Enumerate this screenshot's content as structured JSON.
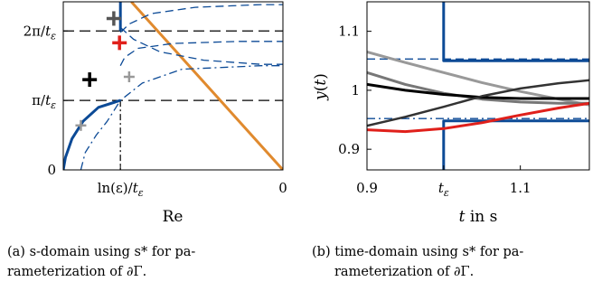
{
  "chart_data": [
    {
      "type": "line",
      "xlabel": "Re",
      "ylabel": "",
      "x_ticks": [
        {
          "value": -3.7,
          "label": "ln(ε)/t_ε"
        },
        {
          "value": 0,
          "label": "0"
        }
      ],
      "y_ticks": [
        {
          "value": 0,
          "label": "0"
        },
        {
          "value": 1,
          "label": "π/t_ε"
        },
        {
          "value": 2,
          "label": "2π/t_ε"
        }
      ],
      "xlim": [
        -5.0,
        0.0
      ],
      "ylim": [
        0,
        2.42
      ],
      "grid_lines_y": [
        1,
        2
      ],
      "vertical_dashdot_x": -3.7,
      "series": [
        {
          "style": "solid",
          "color": "#0c4a96",
          "points": [
            [
              -5.0,
              0.0
            ],
            [
              -4.95,
              0.18
            ],
            [
              -4.8,
              0.45
            ],
            [
              -4.55,
              0.7
            ],
            [
              -4.2,
              0.9
            ],
            [
              -3.7,
              1.0
            ]
          ]
        },
        {
          "style": "solid",
          "color": "#0c4a96",
          "points": [
            [
              -3.7,
              2.42
            ],
            [
              -3.7,
              2.0
            ]
          ]
        },
        {
          "style": "solid",
          "color": "#e08a2e",
          "points": [
            [
              -3.45,
              2.42
            ],
            [
              0.0,
              0.0
            ]
          ]
        },
        {
          "style": "dashdot",
          "color": "#0c4a96",
          "points": [
            [
              -4.6,
              0.0
            ],
            [
              -4.5,
              0.25
            ],
            [
              -4.25,
              0.5
            ],
            [
              -4.0,
              0.7
            ],
            [
              -3.7,
              1.0
            ],
            [
              -3.2,
              1.25
            ],
            [
              -2.3,
              1.45
            ],
            [
              -0.5,
              1.5
            ],
            [
              0.0,
              1.5
            ]
          ]
        },
        {
          "style": "dashed",
          "color": "#0c4a96",
          "points": [
            [
              -3.7,
              2.05
            ],
            [
              -3.4,
              1.88
            ],
            [
              -2.8,
              1.7
            ],
            [
              -1.8,
              1.58
            ],
            [
              -0.5,
              1.52
            ],
            [
              0.0,
              1.52
            ]
          ]
        },
        {
          "style": "dashed",
          "color": "#0c4a96",
          "points": [
            [
              -3.7,
              1.98
            ],
            [
              -3.5,
              2.1
            ],
            [
              -3.0,
              2.25
            ],
            [
              -2.0,
              2.34
            ],
            [
              -0.5,
              2.38
            ],
            [
              0.0,
              2.38
            ]
          ]
        },
        {
          "style": "dashed",
          "color": "#0c4a96",
          "points": [
            [
              -3.7,
              1.5
            ],
            [
              -3.6,
              1.62
            ],
            [
              -3.3,
              1.75
            ],
            [
              -2.5,
              1.82
            ],
            [
              -1.0,
              1.85
            ],
            [
              0.0,
              1.85
            ]
          ]
        }
      ],
      "markers": [
        {
          "x": -4.4,
          "y": 1.3,
          "color": "#000000",
          "size": "large"
        },
        {
          "x": -3.85,
          "y": 2.18,
          "color": "#555555",
          "size": "large"
        },
        {
          "x": -3.72,
          "y": 1.83,
          "color": "#e0201b",
          "size": "large"
        },
        {
          "x": -3.5,
          "y": 1.34,
          "color": "#999999",
          "size": "small"
        },
        {
          "x": -4.6,
          "y": 0.64,
          "color": "#999999",
          "size": "small"
        }
      ]
    },
    {
      "type": "line",
      "xlabel": "t in s",
      "ylabel": "y(t)",
      "x_ticks": [
        {
          "value": 0.9,
          "label": "0.9"
        },
        {
          "value": 1.0,
          "label": "t_ε"
        },
        {
          "value": 1.1,
          "label": "1.1"
        }
      ],
      "y_ticks": [
        {
          "value": 0.9,
          "label": "0.9"
        },
        {
          "value": 1.0,
          "label": "1"
        },
        {
          "value": 1.1,
          "label": "1.1"
        }
      ],
      "xlim": [
        0.9,
        1.19
      ],
      "ylim": [
        0.865,
        1.15
      ],
      "series": [
        {
          "style": "solid",
          "color": "#0c4a96",
          "width": 3,
          "points": [
            [
              1.0,
              1.15
            ],
            [
              1.0,
              1.05
            ],
            [
              1.19,
              1.05
            ]
          ]
        },
        {
          "style": "solid",
          "color": "#0c4a96",
          "width": 3,
          "points": [
            [
              1.0,
              0.865
            ],
            [
              1.0,
              0.948
            ],
            [
              1.19,
              0.948
            ]
          ]
        },
        {
          "style": "dashed",
          "color": "#0c4a96",
          "points": [
            [
              0.9,
              1.053
            ],
            [
              1.19,
              1.053
            ]
          ]
        },
        {
          "style": "dashdot",
          "color": "#0c4a96",
          "points": [
            [
              0.9,
              0.952
            ],
            [
              1.19,
              0.952
            ]
          ]
        },
        {
          "style": "solid",
          "color": "#999999",
          "points": [
            [
              0.9,
              1.065
            ],
            [
              0.95,
              1.047
            ],
            [
              1.0,
              1.03
            ],
            [
              1.05,
              1.013
            ],
            [
              1.1,
              0.998
            ],
            [
              1.15,
              0.985
            ],
            [
              1.19,
              0.975
            ]
          ]
        },
        {
          "style": "solid",
          "color": "#777777",
          "points": [
            [
              0.9,
              1.03
            ],
            [
              0.95,
              1.01
            ],
            [
              1.0,
              0.995
            ],
            [
              1.05,
              0.985
            ],
            [
              1.1,
              0.98
            ],
            [
              1.15,
              0.978
            ],
            [
              1.19,
              0.978
            ]
          ]
        },
        {
          "style": "solid",
          "color": "#000000",
          "width": 3,
          "points": [
            [
              0.9,
              1.01
            ],
            [
              0.95,
              1.0
            ],
            [
              1.0,
              0.993
            ],
            [
              1.05,
              0.988
            ],
            [
              1.1,
              0.986
            ],
            [
              1.15,
              0.986
            ],
            [
              1.19,
              0.986
            ]
          ]
        },
        {
          "style": "solid",
          "color": "#333333",
          "width": 2.5,
          "points": [
            [
              0.9,
              0.94
            ],
            [
              0.95,
              0.955
            ],
            [
              1.0,
              0.972
            ],
            [
              1.05,
              0.99
            ],
            [
              1.1,
              1.003
            ],
            [
              1.15,
              1.012
            ],
            [
              1.19,
              1.017
            ]
          ]
        },
        {
          "style": "solid",
          "color": "#e0201b",
          "points": [
            [
              0.9,
              0.933
            ],
            [
              0.95,
              0.93
            ],
            [
              1.0,
              0.935
            ],
            [
              1.05,
              0.945
            ],
            [
              1.1,
              0.958
            ],
            [
              1.15,
              0.97
            ],
            [
              1.19,
              0.978
            ]
          ]
        }
      ]
    }
  ],
  "captions": [
    {
      "label": "(a)",
      "lines": [
        "s-domain using s* for pa-",
        "rameterization of ∂Γ."
      ]
    },
    {
      "label": "(b)",
      "lines": [
        "time-domain using s* for pa-",
        "rameterization of ∂Γ."
      ]
    }
  ]
}
